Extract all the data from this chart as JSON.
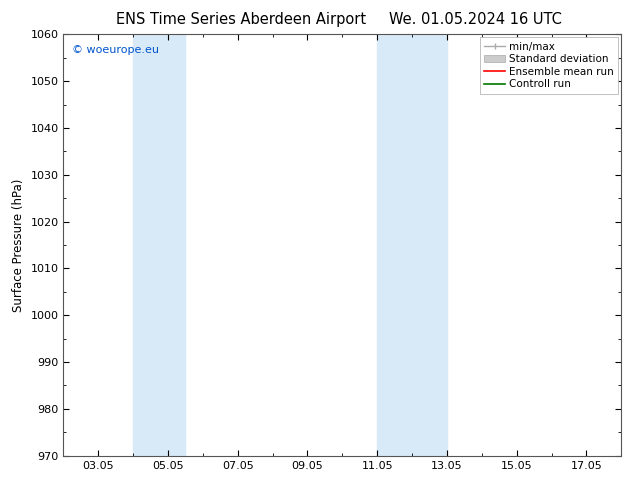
{
  "title1": "ENS Time Series Aberdeen Airport",
  "title2": "We. 01.05.2024 16 UTC",
  "ylabel": "Surface Pressure (hPa)",
  "ylim": [
    970,
    1060
  ],
  "yticks": [
    970,
    980,
    990,
    1000,
    1010,
    1020,
    1030,
    1040,
    1050,
    1060
  ],
  "xlim": [
    2.0,
    18.0
  ],
  "xtick_labels": [
    "03.05",
    "05.05",
    "07.05",
    "09.05",
    "11.05",
    "13.05",
    "15.05",
    "17.05"
  ],
  "xtick_positions": [
    3,
    5,
    7,
    9,
    11,
    13,
    15,
    17
  ],
  "shade_bands": [
    {
      "xmin": 4.0,
      "xmax": 5.5,
      "color": "#d8eaf8"
    },
    {
      "xmin": 11.0,
      "xmax": 13.0,
      "color": "#d8eaf8"
    }
  ],
  "legend_labels": [
    "min/max",
    "Standard deviation",
    "Ensemble mean run",
    "Controll run"
  ],
  "legend_colors": [
    "#999999",
    "#cccccc",
    "#ff0000",
    "#007700"
  ],
  "watermark": "© woeurope.eu",
  "watermark_color": "#0055cc",
  "bg_color": "#ffffff",
  "spine_color": "#555555",
  "title_fontsize": 10.5,
  "label_fontsize": 8.5,
  "tick_fontsize": 8,
  "legend_fontsize": 7.5
}
